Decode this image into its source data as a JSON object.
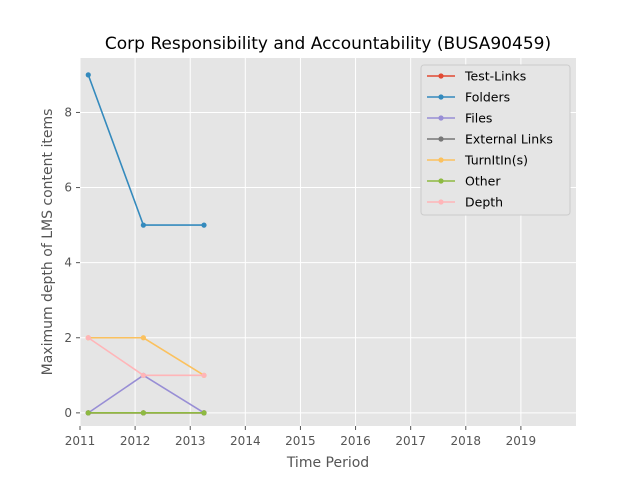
{
  "chart_data": {
    "type": "line",
    "title": "Corp Responsibility and Accountability (BUSA90459)",
    "xlabel": "Time Period",
    "ylabel": "Maximum depth of LMS content items",
    "xlim": [
      2011,
      2020
    ],
    "ylim": [
      -0.35,
      9.45
    ],
    "xticks": [
      2011,
      2012,
      2013,
      2014,
      2015,
      2016,
      2017,
      2018,
      2019
    ],
    "yticks": [
      0,
      2,
      4,
      6,
      8
    ],
    "grid": true,
    "legend_position": "top-right",
    "x": [
      2011.15,
      2012.15,
      2013.25
    ],
    "series": [
      {
        "name": "Test-Links",
        "color": "#E24A33",
        "values": [
          0,
          0,
          0
        ]
      },
      {
        "name": "Folders",
        "color": "#348ABD",
        "values": [
          9,
          5,
          5
        ]
      },
      {
        "name": "Files",
        "color": "#988ED5",
        "values": [
          0,
          1,
          0
        ]
      },
      {
        "name": "External Links",
        "color": "#777777",
        "values": [
          0,
          0,
          0
        ]
      },
      {
        "name": "TurnItIn(s)",
        "color": "#FBC15E",
        "values": [
          2,
          2,
          1
        ]
      },
      {
        "name": "Other",
        "color": "#8EBA42",
        "values": [
          0,
          0,
          0
        ]
      },
      {
        "name": "Depth",
        "color": "#FFB5B8",
        "values": [
          2,
          1,
          1
        ]
      }
    ]
  }
}
